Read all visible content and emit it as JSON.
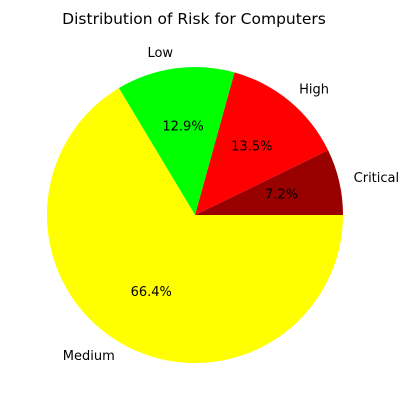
{
  "chart_data": {
    "type": "pie",
    "title": "Distribution of Risk for Computers",
    "slices": [
      {
        "label": "Critical",
        "percent_label": "7.2%",
        "value": 7.2,
        "color": "#990000"
      },
      {
        "label": "High",
        "percent_label": "13.5%",
        "value": 13.5,
        "color": "#ff0000"
      },
      {
        "label": "Low",
        "percent_label": "12.9%",
        "value": 12.9,
        "color": "#00ff00"
      },
      {
        "label": "Medium",
        "percent_label": "66.4%",
        "value": 66.4,
        "color": "#ffff00"
      }
    ],
    "start_angle_deg": 0,
    "direction": "counterclockwise",
    "legend": "none"
  }
}
